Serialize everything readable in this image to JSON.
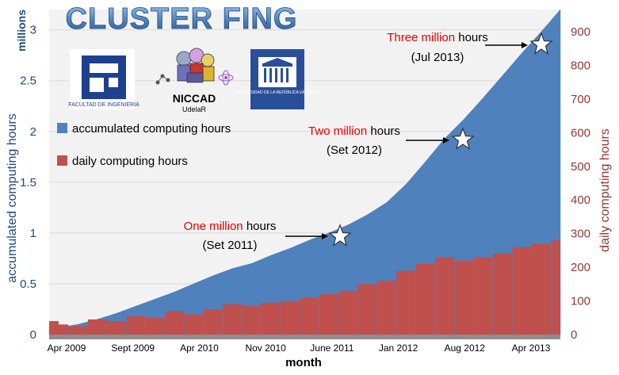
{
  "header": {
    "title": "CLUSTER FING"
  },
  "logos": {
    "fing_text": "FACULTAD DE INGENIERIA",
    "niccad_text": "NICCAD",
    "niccad_sub": "UdelaR",
    "udelar_text": "UNIVERSIDAD DE LA REPÚBLICA URUGUAY"
  },
  "colors": {
    "accumulated": "#4f81bd",
    "daily": "#c0504d",
    "left_axis": "#1f497d",
    "right_axis": "#953735",
    "milestone_highlight": "#e30000",
    "title_fill": "#5b8ed6"
  },
  "chart_data": {
    "type": "area",
    "xlabel": "month",
    "ylabel_left": "accumulated computing hours",
    "ylabel_left_units": "millions",
    "ylabel_right": "daily computing hours",
    "ylim_left": [
      0,
      3.2
    ],
    "ylim_right": [
      0,
      966
    ],
    "yticks_left": [
      "0",
      "0.5",
      "1",
      "1.5",
      "2",
      "2.5",
      "3"
    ],
    "yticks_right": [
      "0",
      "100",
      "200",
      "300",
      "400",
      "500",
      "600",
      "700",
      "800",
      "900"
    ],
    "x_ticks": [
      "Apr 2009",
      "Sept 2009",
      "Apr 2010",
      "Nov 2010",
      "June 2011",
      "Jan 2012",
      "Aug 2012",
      "Apr 2013"
    ],
    "legend": {
      "position": "top-left",
      "entries": [
        "accumulated computing hours",
        "daily computing hours"
      ]
    },
    "series": [
      {
        "name": "accumulated computing hours",
        "axis": "left",
        "x": [
          "2009-03",
          "2009-04",
          "2009-06",
          "2009-08",
          "2009-10",
          "2009-12",
          "2010-02",
          "2010-04",
          "2010-06",
          "2010-08",
          "2010-10",
          "2010-12",
          "2011-02",
          "2011-04",
          "2011-06",
          "2011-08",
          "2011-10",
          "2011-12",
          "2012-02",
          "2012-04",
          "2012-06",
          "2012-08",
          "2012-10",
          "2012-12",
          "2013-02",
          "2013-04",
          "2013-06",
          "2013-08"
        ],
        "values": [
          0.05,
          0.07,
          0.1,
          0.15,
          0.21,
          0.28,
          0.35,
          0.42,
          0.5,
          0.58,
          0.65,
          0.7,
          0.78,
          0.85,
          0.93,
          1.0,
          1.08,
          1.18,
          1.3,
          1.48,
          1.7,
          1.93,
          2.12,
          2.33,
          2.55,
          2.77,
          2.98,
          3.2
        ]
      },
      {
        "name": "daily computing hours",
        "axis": "right",
        "x": [
          "2009-03",
          "2009-04",
          "2009-06",
          "2009-08",
          "2009-10",
          "2009-12",
          "2010-02",
          "2010-04",
          "2010-06",
          "2010-08",
          "2010-10",
          "2010-12",
          "2011-02",
          "2011-04",
          "2011-06",
          "2011-08",
          "2011-10",
          "2011-12",
          "2012-02",
          "2012-04",
          "2012-06",
          "2012-08",
          "2012-10",
          "2012-12",
          "2013-02",
          "2013-04",
          "2013-06",
          "2013-08"
        ],
        "values": [
          40,
          30,
          25,
          45,
          40,
          55,
          50,
          70,
          60,
          75,
          90,
          85,
          95,
          100,
          110,
          120,
          130,
          150,
          160,
          190,
          210,
          230,
          220,
          230,
          240,
          260,
          270,
          280
        ]
      }
    ],
    "annotations": [
      {
        "highlight": "One million",
        "rest": " hours",
        "date": "(Set 2011)"
      },
      {
        "highlight": "Two million",
        "rest": " hours",
        "date": "(Set 2012)"
      },
      {
        "highlight": "Three million",
        "rest": " hours",
        "date": "(Jul 2013)"
      }
    ]
  }
}
